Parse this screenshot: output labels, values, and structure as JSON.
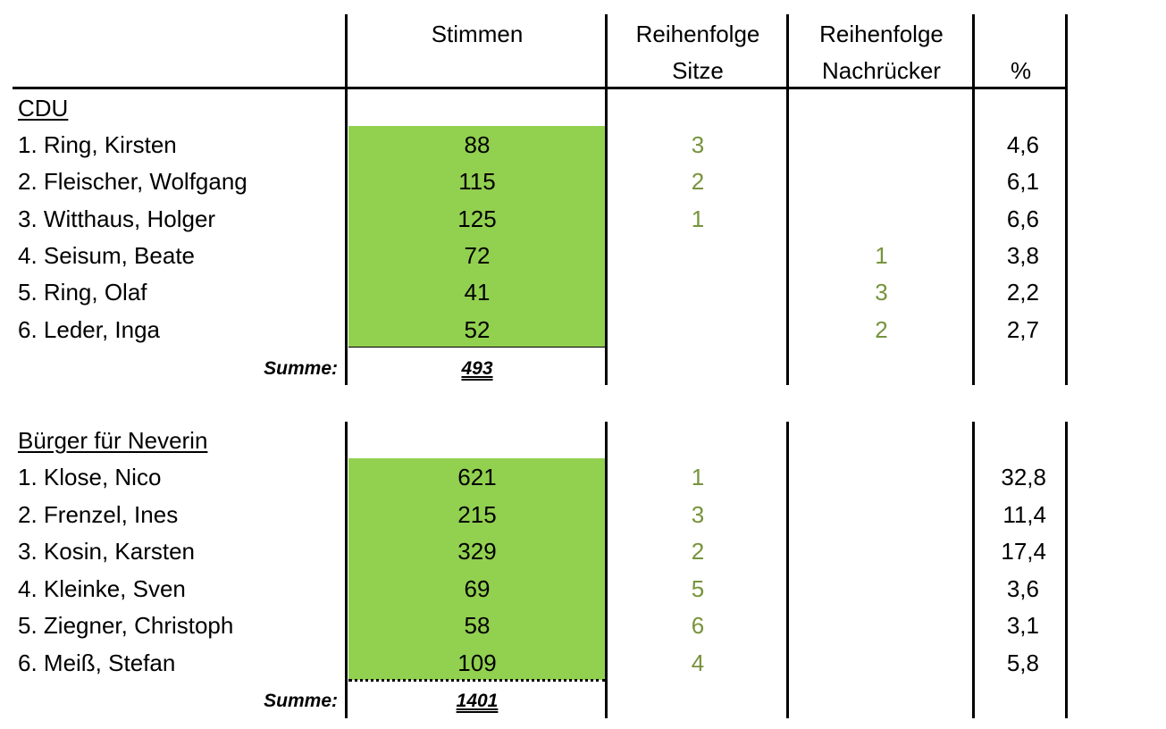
{
  "header": {
    "stimmen": "Stimmen",
    "sitze_l1": "Reihenfolge",
    "sitze_l2": "Sitze",
    "nach_l1": "Reihenfolge",
    "nach_l2": "Nachrücker",
    "pct": "%"
  },
  "sections": [
    {
      "title": "CDU",
      "rows": [
        {
          "name": "1. Ring, Kirsten",
          "votes": "88",
          "sitze": "3",
          "nach": "",
          "pct": "4,6"
        },
        {
          "name": "2. Fleischer, Wolfgang",
          "votes": "115",
          "sitze": "2",
          "nach": "",
          "pct": "6,1"
        },
        {
          "name": "3. Witthaus, Holger",
          "votes": "125",
          "sitze": "1",
          "nach": "",
          "pct": "6,6"
        },
        {
          "name": "4. Seisum, Beate",
          "votes": "72",
          "sitze": "",
          "nach": "1",
          "pct": "3,8"
        },
        {
          "name": "5. Ring, Olaf",
          "votes": "41",
          "sitze": "",
          "nach": "3",
          "pct": "2,2"
        },
        {
          "name": "6. Leder, Inga",
          "votes": "52",
          "sitze": "",
          "nach": "2",
          "pct": "2,7"
        }
      ],
      "sum_label": "Summe:",
      "sum_value": "493"
    },
    {
      "title": "Bürger für Neverin",
      "rows": [
        {
          "name": "1. Klose, Nico",
          "votes": "621",
          "sitze": "1",
          "nach": "",
          "pct": "32,8"
        },
        {
          "name": "2. Frenzel, Ines",
          "votes": "215",
          "sitze": "3",
          "nach": "",
          "pct": "11,4"
        },
        {
          "name": "3. Kosin, Karsten",
          "votes": "329",
          "sitze": "2",
          "nach": "",
          "pct": "17,4"
        },
        {
          "name": "4. Kleinke, Sven",
          "votes": "69",
          "sitze": "5",
          "nach": "",
          "pct": "3,6"
        },
        {
          "name": "5. Ziegner, Christoph",
          "votes": "58",
          "sitze": "6",
          "nach": "",
          "pct": "3,1"
        },
        {
          "name": "6. Meiß, Stefan",
          "votes": "109",
          "sitze": "4",
          "nach": "",
          "pct": "5,8"
        }
      ],
      "sum_label": "Summe:",
      "sum_value": "1401"
    }
  ],
  "colors": {
    "vote_fill": "#92d050",
    "rank_text": "#76933c"
  }
}
